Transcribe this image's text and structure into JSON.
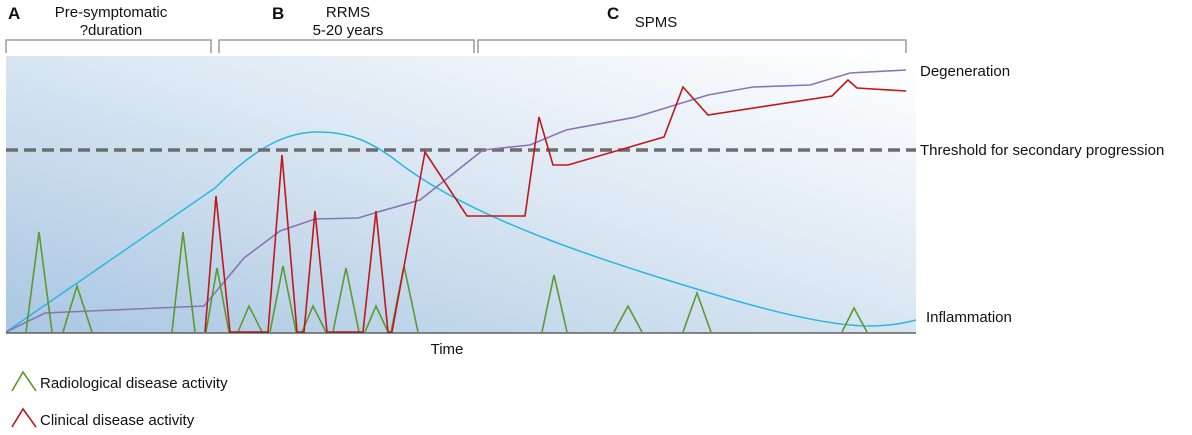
{
  "phases": [
    {
      "letter": "A",
      "line1": "Pre-symptomatic",
      "line2": "?duration"
    },
    {
      "letter": "B",
      "line1": "RRMS",
      "line2": "5-20 years"
    },
    {
      "letter": "C",
      "line1": "SPMS",
      "line2": ""
    }
  ],
  "curve_labels": {
    "degeneration": "Degeneration",
    "threshold": "Threshold for secondary progression",
    "inflammation": "Inflammation"
  },
  "axis": {
    "xlabel": "Time"
  },
  "legend": {
    "radiological": "Radiological disease activity",
    "clinical": "Clinical disease activity"
  },
  "colors": {
    "radiological": "#5a9a2e",
    "clinical": "#c0181a",
    "degeneration": "#8a74b8",
    "inflammation": "#2ab8e0",
    "threshold": "#6d6d6d",
    "bracket": "#8a8a8a",
    "background_gradient_start": "#a9c6e2",
    "background_gradient_end": "#ffffff"
  }
}
